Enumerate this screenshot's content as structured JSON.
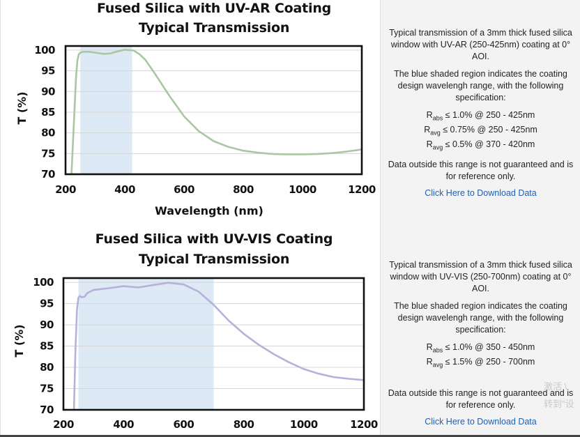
{
  "panels": [
    {
      "chart_data": {
        "type": "line",
        "title": [
          "Fused Silica with UV-AR Coating",
          "Typical Transmission"
        ],
        "xlabel": "Wavelength (nm)",
        "ylabel": "T (%)",
        "xlim": [
          200,
          1200
        ],
        "ylim": [
          70,
          101
        ],
        "xticks": [
          200,
          400,
          600,
          800,
          1000,
          1200
        ],
        "yticks": [
          70,
          75,
          80,
          85,
          90,
          95,
          100
        ],
        "grid": true,
        "shaded_region": [
          250,
          425
        ],
        "shade_color": "#dde9f5",
        "line_color": "#a8c7a2",
        "series": [
          {
            "x": [
              220,
              228,
              235,
              240,
              245,
              250,
              260,
              280,
              300,
              330,
              350,
              370,
              400,
              430,
              450,
              470,
              500,
              550,
              600,
              650,
              700,
              750,
              800,
              850,
              900,
              950,
              1000,
              1050,
              1100,
              1150,
              1200
            ],
            "values": [
              70,
              82,
              93,
              97.5,
              99,
              99.4,
              99.6,
              99.6,
              99.4,
              99.1,
              99.2,
              99.6,
              100.1,
              99.9,
              99.0,
              97.6,
              94.5,
              89.0,
              84.0,
              80.4,
              78.0,
              76.6,
              75.7,
              75.2,
              74.9,
              74.8,
              74.8,
              74.9,
              75.1,
              75.5,
              76.0
            ]
          }
        ]
      },
      "desc": {
        "intro": "Typical transmission of a 3mm thick fused silica window with UV-AR (250-425nm) coating at 0° AOI.",
        "shade_note": "The blue shaded region indicates the coating design wavelengh range, with the following specification:",
        "specs": [
          {
            "sym": "R",
            "sub": "abs",
            "text": " ≤ 1.0% @ 250 - 425nm"
          },
          {
            "sym": "R",
            "sub": "avg",
            "text": " ≤ 0.75% @ 250 - 425nm"
          },
          {
            "sym": "R",
            "sub": "avg",
            "text": " ≤ 0.5% @ 370 - 420nm"
          }
        ],
        "disclaimer": "Data outside this range is not guaranteed and is for reference only.",
        "download": "Click Here to Download Data"
      }
    },
    {
      "chart_data": {
        "type": "line",
        "title": [
          "Fused Silica with UV-VIS Coating",
          "Typical Transmission"
        ],
        "xlabel": "",
        "ylabel": "T (%)",
        "xlim": [
          200,
          1200
        ],
        "ylim": [
          70,
          101
        ],
        "xticks": [
          200,
          400,
          600,
          800,
          1000,
          1200
        ],
        "yticks": [
          70,
          75,
          80,
          85,
          90,
          95,
          100
        ],
        "grid": true,
        "shaded_region": [
          250,
          700
        ],
        "shade_color": "#dde9f5",
        "line_color": "#b7b1d9",
        "series": [
          {
            "x": [
              235,
              240,
              245,
              250,
              255,
              260,
              270,
              280,
              300,
              350,
              400,
              450,
              500,
              550,
              600,
              650,
              700,
              750,
              800,
              850,
              900,
              950,
              1000,
              1050,
              1100,
              1150,
              1200
            ],
            "values": [
              70,
              84,
              93.5,
              96.4,
              96.8,
              96.5,
              96.6,
              97.5,
              98.2,
              98.6,
              99.1,
              98.8,
              99.4,
              99.9,
              99.5,
              97.8,
              94.7,
              91.0,
              87.9,
              85.3,
              83.1,
              81.2,
              79.6,
              78.5,
              77.7,
              77.3,
              77.0
            ]
          }
        ]
      },
      "desc": {
        "intro": "Typical transmission of a 3mm thick fused silica window with UV-VIS (250-700nm) coating at 0° AOI.",
        "shade_note": "The blue shaded region indicates the coating design wavelengh range, with the following specification:",
        "specs": [
          {
            "sym": "R",
            "sub": "abs",
            "text": " ≤ 1.0% @ 350 - 450nm"
          },
          {
            "sym": "R",
            "sub": "avg",
            "text": " ≤ 1.5% @ 250 - 700nm"
          }
        ],
        "disclaimer": "Data outside this range is not guaranteed and is for reference only.",
        "download": "Click Here to Download Data"
      }
    }
  ],
  "watermark": {
    "line1": "激活 \\",
    "line2": "转到\"设"
  }
}
